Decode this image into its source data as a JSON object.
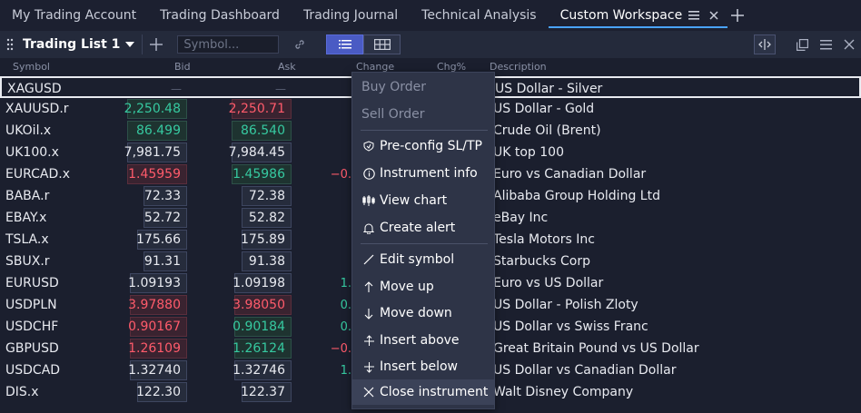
{
  "tabs": [
    {
      "label": "My Trading Account"
    },
    {
      "label": "Trading Dashboard"
    },
    {
      "label": "Trading Journal"
    },
    {
      "label": "Technical Analysis"
    },
    {
      "label": "Custom Workspace"
    }
  ],
  "toolbar": {
    "list_name": "Trading List 1",
    "search_placeholder": "Symbol..."
  },
  "columns": {
    "symbol": "Symbol",
    "bid": "Bid",
    "ask": "Ask",
    "change": "Change",
    "chg_pct": "Chg%",
    "description": "Description"
  },
  "rows": [
    {
      "symbol": "XAGUSD",
      "bid": "—",
      "ask": "—",
      "change": "",
      "description": "US Dollar - Silver",
      "bid_color": "dash",
      "ask_color": "dash"
    },
    {
      "symbol": "XAUUSD.r",
      "bid": "2,250.48",
      "ask": "2,250.71",
      "change": "",
      "description": "US Dollar - Gold",
      "bid_color": "green",
      "ask_color": "red"
    },
    {
      "symbol": "UKOil.x",
      "bid": "86.499",
      "ask": "86.540",
      "change": "",
      "description": "Crude Oil (Brent)",
      "bid_color": "green",
      "ask_color": "green"
    },
    {
      "symbol": "UK100.x",
      "bid": "7,981.75",
      "ask": "7,984.45",
      "change": "",
      "description": "UK top 100",
      "bid_color": "neutral",
      "ask_color": "neutral"
    },
    {
      "symbol": "EURCAD.x",
      "bid": "1.45959",
      "ask": "1.45986",
      "change": "−0.",
      "description": "Euro vs Canadian Dollar",
      "bid_color": "red",
      "ask_color": "green"
    },
    {
      "symbol": "BABA.r",
      "bid": "72.33",
      "ask": "72.38",
      "change": "",
      "description": "Alibaba Group Holding Ltd",
      "bid_color": "neutral",
      "ask_color": "neutral"
    },
    {
      "symbol": "EBAY.x",
      "bid": "52.72",
      "ask": "52.82",
      "change": "",
      "description": "eBay Inc",
      "bid_color": "neutral",
      "ask_color": "neutral"
    },
    {
      "symbol": "TSLA.x",
      "bid": "175.66",
      "ask": "175.89",
      "change": "",
      "description": "Tesla Motors Inc",
      "bid_color": "neutral",
      "ask_color": "neutral"
    },
    {
      "symbol": "SBUX.r",
      "bid": "91.31",
      "ask": "91.38",
      "change": "",
      "description": "Starbucks Corp",
      "bid_color": "neutral",
      "ask_color": "neutral"
    },
    {
      "symbol": "EURUSD",
      "bid": "1.09193",
      "ask": "1.09198",
      "change": "1.",
      "description": "Euro vs US Dollar",
      "bid_color": "neutral",
      "ask_color": "neutral"
    },
    {
      "symbol": "USDPLN",
      "bid": "3.97880",
      "ask": "3.98050",
      "change": "0.",
      "description": "US Dollar - Polish Zloty",
      "bid_color": "red",
      "ask_color": "red"
    },
    {
      "symbol": "USDCHF",
      "bid": "0.90167",
      "ask": "0.90184",
      "change": "0.",
      "description": "US Dollar vs Swiss Franc",
      "bid_color": "red",
      "ask_color": "green"
    },
    {
      "symbol": "GBPUSD",
      "bid": "1.26109",
      "ask": "1.26124",
      "change": "−0.",
      "description": "Great Britain Pound vs US Dollar",
      "bid_color": "red",
      "ask_color": "green"
    },
    {
      "symbol": "USDCAD",
      "bid": "1.32740",
      "ask": "1.32746",
      "change": "1.",
      "description": "US Dollar vs Canadian Dollar",
      "bid_color": "neutral",
      "ask_color": "neutral"
    },
    {
      "symbol": "DIS.x",
      "bid": "122.30",
      "ask": "122.37",
      "change": "",
      "description": "Walt Disney Company",
      "bid_color": "neutral",
      "ask_color": "neutral"
    }
  ],
  "menu": {
    "buy_order": "Buy Order",
    "sell_order": "Sell Order",
    "preconfig": "Pre-config SL/TP",
    "instrument_info": "Instrument info",
    "view_chart": "View chart",
    "create_alert": "Create alert",
    "edit_symbol": "Edit symbol",
    "move_up": "Move up",
    "move_down": "Move down",
    "insert_above": "Insert above",
    "insert_below": "Insert below",
    "close_instrument": "Close instrument"
  },
  "colors": {
    "accent": "#4aa3ff",
    "positive": "#36c9a0",
    "negative": "#ff5b6b",
    "view_toggle_active": "#4a5bc4"
  }
}
